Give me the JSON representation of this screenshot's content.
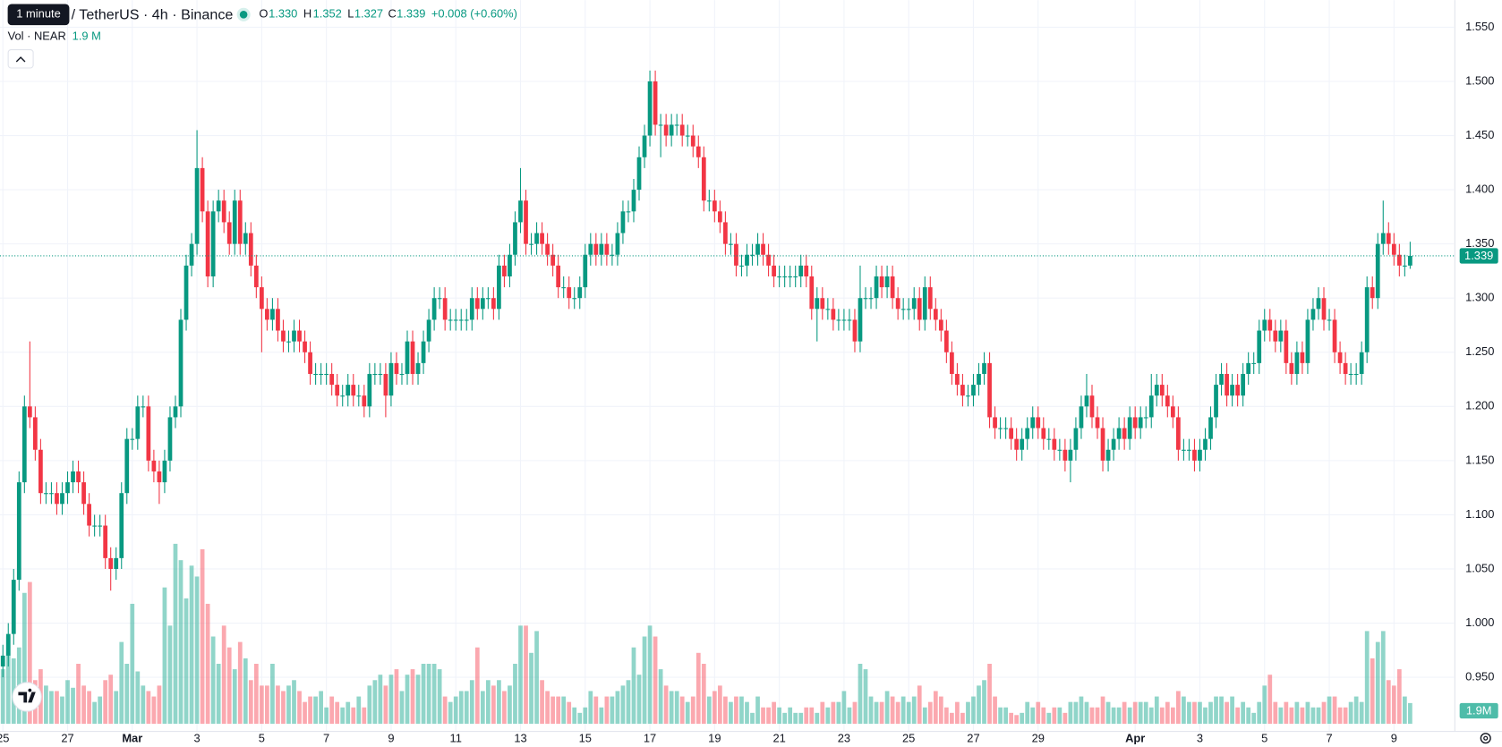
{
  "header": {
    "tooltip": "1 minute",
    "symbol": "/ TetherUS · 4h · Binance",
    "ohlc": [
      {
        "key": "O",
        "value": "1.330"
      },
      {
        "key": "H",
        "value": "1.352"
      },
      {
        "key": "L",
        "value": "1.327"
      },
      {
        "key": "C",
        "value": "1.339"
      }
    ],
    "change": "+0.008 (+0.60%)",
    "volume_title": "Vol · NEAR",
    "volume_value": "1.9 M"
  },
  "chart_data": {
    "type": "candlestick",
    "up_color": "#089981",
    "down_color": "#f23645",
    "volume_up_color": "#22ab94",
    "volume_down_color": "#f7525f",
    "ylim": [
      0.9,
      1.575
    ],
    "yticks": [
      {
        "value": 0.95,
        "label": "0.950"
      },
      {
        "value": 1.0,
        "label": "1.000"
      },
      {
        "value": 1.05,
        "label": "1.050"
      },
      {
        "value": 1.1,
        "label": "1.100"
      },
      {
        "value": 1.15,
        "label": "1.150"
      },
      {
        "value": 1.2,
        "label": "1.200"
      },
      {
        "value": 1.25,
        "label": "1.250"
      },
      {
        "value": 1.3,
        "label": "1.300"
      },
      {
        "value": 1.35,
        "label": "1.350"
      },
      {
        "value": 1.4,
        "label": "1.400"
      },
      {
        "value": 1.45,
        "label": "1.450"
      },
      {
        "value": 1.5,
        "label": "1.500"
      },
      {
        "value": 1.55,
        "label": "1.550"
      }
    ],
    "xticks": [
      {
        "value": 0,
        "label": "25"
      },
      {
        "value": 12,
        "label": "27"
      },
      {
        "value": 24,
        "label": "Mar"
      },
      {
        "value": 36,
        "label": "3"
      },
      {
        "value": 48,
        "label": "5"
      },
      {
        "value": 60,
        "label": "7"
      },
      {
        "value": 72,
        "label": "9"
      },
      {
        "value": 84,
        "label": "11"
      },
      {
        "value": 96,
        "label": "13"
      },
      {
        "value": 108,
        "label": "15"
      },
      {
        "value": 120,
        "label": "17"
      },
      {
        "value": 132,
        "label": "19"
      },
      {
        "value": 144,
        "label": "21"
      },
      {
        "value": 156,
        "label": "23"
      },
      {
        "value": 168,
        "label": "25"
      },
      {
        "value": 180,
        "label": "27"
      },
      {
        "value": 192,
        "label": "29"
      },
      {
        "value": 210,
        "label": "Apr"
      },
      {
        "value": 222,
        "label": "3"
      },
      {
        "value": 234,
        "label": "5"
      },
      {
        "value": 246,
        "label": "7"
      },
      {
        "value": 258,
        "label": "9"
      }
    ],
    "last_price": {
      "value": 1.339,
      "label": "1.339"
    },
    "volume_ylim": [
      0,
      16.5
    ],
    "volume_tag": {
      "value": 1.9,
      "label": "1.9M"
    },
    "open": [
      0.96,
      0.97,
      0.99,
      1.04,
      1.13,
      1.2,
      1.19,
      1.16,
      1.12,
      1.12,
      1.12,
      1.11,
      1.12,
      1.13,
      1.14,
      1.13,
      1.11,
      1.09,
      1.09,
      1.09,
      1.06,
      1.05,
      1.06,
      1.12,
      1.17,
      1.17,
      1.2,
      1.2,
      1.15,
      1.14,
      1.13,
      1.15,
      1.19,
      1.2,
      1.28,
      1.33,
      1.35,
      1.42,
      1.38,
      1.32,
      1.38,
      1.39,
      1.37,
      1.35,
      1.39,
      1.35,
      1.36,
      1.33,
      1.31,
      1.29,
      1.28,
      1.29,
      1.27,
      1.26,
      1.26,
      1.27,
      1.26,
      1.25,
      1.23,
      1.23,
      1.23,
      1.23,
      1.22,
      1.21,
      1.21,
      1.22,
      1.21,
      1.21,
      1.2,
      1.23,
      1.23,
      1.23,
      1.21,
      1.24,
      1.23,
      1.23,
      1.26,
      1.23,
      1.24,
      1.26,
      1.28,
      1.3,
      1.3,
      1.28,
      1.28,
      1.28,
      1.28,
      1.28,
      1.3,
      1.29,
      1.3,
      1.3,
      1.29,
      1.33,
      1.32,
      1.34,
      1.37,
      1.39,
      1.35,
      1.35,
      1.36,
      1.35,
      1.34,
      1.33,
      1.31,
      1.31,
      1.3,
      1.3,
      1.31,
      1.34,
      1.35,
      1.34,
      1.35,
      1.34,
      1.34,
      1.36,
      1.38,
      1.38,
      1.4,
      1.43,
      1.45,
      1.5,
      1.46,
      1.46,
      1.45,
      1.46,
      1.46,
      1.45,
      1.45,
      1.44,
      1.43,
      1.39,
      1.39,
      1.38,
      1.37,
      1.35,
      1.35,
      1.33,
      1.33,
      1.34,
      1.34,
      1.35,
      1.34,
      1.33,
      1.32,
      1.32,
      1.32,
      1.32,
      1.32,
      1.33,
      1.32,
      1.29,
      1.3,
      1.29,
      1.29,
      1.28,
      1.28,
      1.28,
      1.28,
      1.26,
      1.3,
      1.3,
      1.3,
      1.32,
      1.31,
      1.32,
      1.3,
      1.29,
      1.29,
      1.29,
      1.3,
      1.28,
      1.31,
      1.29,
      1.28,
      1.27,
      1.25,
      1.23,
      1.22,
      1.21,
      1.21,
      1.22,
      1.23,
      1.24,
      1.19,
      1.18,
      1.18,
      1.18,
      1.17,
      1.16,
      1.17,
      1.18,
      1.19,
      1.18,
      1.17,
      1.17,
      1.16,
      1.16,
      1.15,
      1.16,
      1.18,
      1.2,
      1.21,
      1.19,
      1.18,
      1.15,
      1.16,
      1.17,
      1.18,
      1.17,
      1.19,
      1.18,
      1.19,
      1.19,
      1.21,
      1.22,
      1.21,
      1.2,
      1.19,
      1.16,
      1.16,
      1.16,
      1.15,
      1.16,
      1.17,
      1.19,
      1.22,
      1.23,
      1.21,
      1.22,
      1.21,
      1.23,
      1.24,
      1.24,
      1.27,
      1.28,
      1.27,
      1.26,
      1.27,
      1.24,
      1.23,
      1.25,
      1.24,
      1.28,
      1.29,
      1.3,
      1.28,
      1.28,
      1.25,
      1.24,
      1.23,
      1.23,
      1.23,
      1.25,
      1.31,
      1.3,
      1.35,
      1.36,
      1.35,
      1.34,
      1.33,
      1.33
    ],
    "high": [
      0.98,
      1.0,
      1.05,
      1.14,
      1.21,
      1.26,
      1.2,
      1.17,
      1.13,
      1.13,
      1.13,
      1.13,
      1.14,
      1.15,
      1.15,
      1.14,
      1.12,
      1.1,
      1.1,
      1.1,
      1.07,
      1.07,
      1.13,
      1.18,
      1.18,
      1.21,
      1.21,
      1.21,
      1.16,
      1.15,
      1.16,
      1.2,
      1.21,
      1.29,
      1.34,
      1.36,
      1.455,
      1.43,
      1.39,
      1.39,
      1.4,
      1.4,
      1.38,
      1.4,
      1.4,
      1.37,
      1.37,
      1.34,
      1.32,
      1.3,
      1.3,
      1.3,
      1.28,
      1.27,
      1.28,
      1.28,
      1.27,
      1.26,
      1.24,
      1.24,
      1.24,
      1.24,
      1.23,
      1.22,
      1.23,
      1.23,
      1.22,
      1.22,
      1.24,
      1.24,
      1.24,
      1.24,
      1.25,
      1.25,
      1.24,
      1.27,
      1.27,
      1.25,
      1.27,
      1.29,
      1.31,
      1.31,
      1.31,
      1.29,
      1.29,
      1.29,
      1.29,
      1.31,
      1.31,
      1.31,
      1.31,
      1.31,
      1.34,
      1.34,
      1.35,
      1.38,
      1.42,
      1.4,
      1.36,
      1.37,
      1.37,
      1.36,
      1.35,
      1.34,
      1.32,
      1.32,
      1.31,
      1.32,
      1.35,
      1.36,
      1.36,
      1.36,
      1.36,
      1.35,
      1.37,
      1.39,
      1.39,
      1.41,
      1.44,
      1.46,
      1.51,
      1.51,
      1.47,
      1.47,
      1.47,
      1.47,
      1.47,
      1.46,
      1.46,
      1.45,
      1.44,
      1.4,
      1.4,
      1.39,
      1.38,
      1.36,
      1.36,
      1.34,
      1.35,
      1.35,
      1.36,
      1.36,
      1.35,
      1.34,
      1.33,
      1.33,
      1.33,
      1.33,
      1.34,
      1.34,
      1.33,
      1.31,
      1.31,
      1.3,
      1.3,
      1.29,
      1.29,
      1.29,
      1.29,
      1.33,
      1.31,
      1.31,
      1.33,
      1.33,
      1.33,
      1.33,
      1.31,
      1.3,
      1.3,
      1.31,
      1.31,
      1.32,
      1.32,
      1.3,
      1.29,
      1.28,
      1.26,
      1.24,
      1.23,
      1.22,
      1.23,
      1.24,
      1.25,
      1.25,
      1.2,
      1.19,
      1.19,
      1.19,
      1.18,
      1.18,
      1.19,
      1.2,
      1.2,
      1.19,
      1.18,
      1.18,
      1.17,
      1.17,
      1.17,
      1.19,
      1.21,
      1.23,
      1.22,
      1.2,
      1.19,
      1.17,
      1.18,
      1.19,
      1.19,
      1.2,
      1.2,
      1.2,
      1.2,
      1.23,
      1.23,
      1.23,
      1.22,
      1.21,
      1.2,
      1.17,
      1.17,
      1.17,
      1.17,
      1.18,
      1.2,
      1.23,
      1.24,
      1.24,
      1.23,
      1.23,
      1.24,
      1.25,
      1.25,
      1.28,
      1.29,
      1.29,
      1.28,
      1.28,
      1.28,
      1.25,
      1.26,
      1.26,
      1.29,
      1.3,
      1.31,
      1.31,
      1.29,
      1.29,
      1.26,
      1.25,
      1.24,
      1.24,
      1.26,
      1.32,
      1.32,
      1.36,
      1.39,
      1.37,
      1.36,
      1.35,
      1.34,
      1.352
    ],
    "low": [
      0.95,
      0.96,
      0.98,
      1.03,
      1.12,
      1.18,
      1.15,
      1.11,
      1.11,
      1.11,
      1.1,
      1.1,
      1.11,
      1.12,
      1.12,
      1.1,
      1.08,
      1.08,
      1.08,
      1.05,
      1.03,
      1.04,
      1.05,
      1.11,
      1.16,
      1.16,
      1.19,
      1.14,
      1.13,
      1.11,
      1.12,
      1.14,
      1.18,
      1.19,
      1.27,
      1.32,
      1.34,
      1.37,
      1.31,
      1.31,
      1.37,
      1.36,
      1.34,
      1.34,
      1.34,
      1.34,
      1.32,
      1.3,
      1.25,
      1.27,
      1.27,
      1.26,
      1.25,
      1.25,
      1.25,
      1.25,
      1.24,
      1.22,
      1.22,
      1.22,
      1.22,
      1.21,
      1.2,
      1.2,
      1.2,
      1.2,
      1.2,
      1.19,
      1.19,
      1.22,
      1.22,
      1.19,
      1.2,
      1.22,
      1.22,
      1.22,
      1.22,
      1.22,
      1.23,
      1.25,
      1.27,
      1.29,
      1.27,
      1.27,
      1.27,
      1.27,
      1.27,
      1.27,
      1.28,
      1.28,
      1.29,
      1.28,
      1.28,
      1.31,
      1.31,
      1.33,
      1.36,
      1.34,
      1.34,
      1.34,
      1.34,
      1.33,
      1.32,
      1.3,
      1.3,
      1.29,
      1.29,
      1.29,
      1.3,
      1.33,
      1.33,
      1.33,
      1.33,
      1.33,
      1.33,
      1.35,
      1.37,
      1.37,
      1.39,
      1.42,
      1.44,
      1.45,
      1.43,
      1.44,
      1.44,
      1.45,
      1.44,
      1.44,
      1.43,
      1.42,
      1.38,
      1.38,
      1.37,
      1.36,
      1.34,
      1.34,
      1.32,
      1.32,
      1.32,
      1.33,
      1.33,
      1.33,
      1.32,
      1.31,
      1.31,
      1.31,
      1.31,
      1.31,
      1.31,
      1.31,
      1.28,
      1.26,
      1.28,
      1.28,
      1.27,
      1.27,
      1.27,
      1.27,
      1.25,
      1.25,
      1.29,
      1.29,
      1.29,
      1.3,
      1.3,
      1.29,
      1.28,
      1.28,
      1.28,
      1.28,
      1.27,
      1.27,
      1.28,
      1.27,
      1.26,
      1.24,
      1.22,
      1.21,
      1.2,
      1.2,
      1.2,
      1.21,
      1.22,
      1.18,
      1.17,
      1.17,
      1.17,
      1.16,
      1.15,
      1.15,
      1.16,
      1.17,
      1.17,
      1.16,
      1.16,
      1.15,
      1.15,
      1.14,
      1.13,
      1.15,
      1.17,
      1.19,
      1.18,
      1.17,
      1.14,
      1.14,
      1.15,
      1.16,
      1.16,
      1.16,
      1.17,
      1.17,
      1.18,
      1.18,
      1.2,
      1.2,
      1.19,
      1.18,
      1.15,
      1.15,
      1.15,
      1.14,
      1.14,
      1.15,
      1.16,
      1.18,
      1.21,
      1.2,
      1.2,
      1.2,
      1.2,
      1.22,
      1.23,
      1.23,
      1.26,
      1.26,
      1.25,
      1.25,
      1.23,
      1.22,
      1.22,
      1.23,
      1.23,
      1.27,
      1.28,
      1.27,
      1.27,
      1.24,
      1.23,
      1.22,
      1.22,
      1.22,
      1.22,
      1.24,
      1.29,
      1.29,
      1.34,
      1.34,
      1.33,
      1.32,
      1.32,
      1.327
    ],
    "close": [
      0.97,
      0.99,
      1.04,
      1.13,
      1.2,
      1.19,
      1.16,
      1.12,
      1.12,
      1.12,
      1.11,
      1.12,
      1.13,
      1.14,
      1.13,
      1.11,
      1.09,
      1.09,
      1.09,
      1.06,
      1.05,
      1.06,
      1.12,
      1.17,
      1.17,
      1.2,
      1.2,
      1.15,
      1.14,
      1.13,
      1.15,
      1.19,
      1.2,
      1.28,
      1.33,
      1.35,
      1.42,
      1.38,
      1.32,
      1.38,
      1.39,
      1.37,
      1.35,
      1.39,
      1.35,
      1.36,
      1.33,
      1.31,
      1.29,
      1.28,
      1.29,
      1.27,
      1.26,
      1.26,
      1.27,
      1.26,
      1.25,
      1.23,
      1.23,
      1.23,
      1.23,
      1.22,
      1.21,
      1.21,
      1.22,
      1.21,
      1.21,
      1.2,
      1.23,
      1.23,
      1.23,
      1.21,
      1.24,
      1.23,
      1.23,
      1.26,
      1.23,
      1.24,
      1.26,
      1.28,
      1.3,
      1.3,
      1.28,
      1.28,
      1.28,
      1.28,
      1.28,
      1.3,
      1.29,
      1.3,
      1.3,
      1.29,
      1.33,
      1.32,
      1.34,
      1.37,
      1.39,
      1.35,
      1.35,
      1.36,
      1.35,
      1.34,
      1.33,
      1.31,
      1.31,
      1.3,
      1.3,
      1.31,
      1.34,
      1.35,
      1.34,
      1.35,
      1.34,
      1.34,
      1.36,
      1.38,
      1.38,
      1.4,
      1.43,
      1.45,
      1.5,
      1.46,
      1.46,
      1.45,
      1.46,
      1.46,
      1.45,
      1.45,
      1.44,
      1.43,
      1.39,
      1.39,
      1.38,
      1.37,
      1.35,
      1.35,
      1.33,
      1.33,
      1.34,
      1.34,
      1.35,
      1.34,
      1.33,
      1.32,
      1.32,
      1.32,
      1.32,
      1.32,
      1.33,
      1.32,
      1.29,
      1.3,
      1.29,
      1.29,
      1.28,
      1.28,
      1.28,
      1.28,
      1.26,
      1.3,
      1.3,
      1.3,
      1.32,
      1.31,
      1.32,
      1.3,
      1.29,
      1.29,
      1.29,
      1.3,
      1.28,
      1.31,
      1.29,
      1.28,
      1.27,
      1.25,
      1.23,
      1.22,
      1.21,
      1.21,
      1.22,
      1.23,
      1.24,
      1.19,
      1.18,
      1.18,
      1.18,
      1.17,
      1.16,
      1.17,
      1.18,
      1.19,
      1.18,
      1.17,
      1.17,
      1.16,
      1.16,
      1.15,
      1.16,
      1.18,
      1.2,
      1.21,
      1.19,
      1.18,
      1.15,
      1.16,
      1.17,
      1.18,
      1.17,
      1.19,
      1.18,
      1.19,
      1.19,
      1.21,
      1.22,
      1.21,
      1.2,
      1.19,
      1.16,
      1.16,
      1.16,
      1.15,
      1.16,
      1.17,
      1.19,
      1.22,
      1.23,
      1.21,
      1.22,
      1.21,
      1.23,
      1.24,
      1.24,
      1.27,
      1.28,
      1.27,
      1.26,
      1.27,
      1.24,
      1.23,
      1.25,
      1.24,
      1.28,
      1.29,
      1.3,
      1.28,
      1.28,
      1.25,
      1.24,
      1.23,
      1.23,
      1.23,
      1.25,
      1.31,
      1.3,
      1.35,
      1.36,
      1.35,
      1.34,
      1.33,
      1.33,
      1.339
    ],
    "volume": [
      5,
      8,
      6,
      7,
      12,
      13,
      4,
      5,
      3.5,
      3,
      3,
      2.5,
      4,
      3.3,
      5.5,
      3.5,
      3,
      2,
      2.5,
      4,
      4.5,
      3,
      7.5,
      5.5,
      11,
      4.8,
      3.5,
      3,
      2.5,
      3.5,
      12.5,
      9,
      16.5,
      15,
      11.5,
      14.5,
      13.5,
      16,
      11,
      8,
      5.5,
      9,
      7,
      5,
      7.5,
      6,
      4,
      5.5,
      3.5,
      3.5,
      5.5,
      3.5,
      3,
      3.5,
      4,
      3,
      2,
      2.5,
      2.5,
      3,
      1.5,
      2.5,
      2,
      1.5,
      2,
      1.5,
      2.5,
      1.5,
      3.5,
      4,
      4.5,
      3.5,
      4.5,
      5,
      3,
      4.5,
      5,
      4.5,
      5.5,
      5.5,
      5.5,
      5,
      2.5,
      2,
      2.5,
      3,
      3,
      4,
      7,
      3,
      4,
      3.5,
      4,
      3,
      3.5,
      5.5,
      9,
      9,
      6.5,
      8.5,
      4,
      3,
      2.5,
      2.5,
      2.5,
      2,
      1.5,
      1,
      1.5,
      3,
      2.5,
      1.5,
      2.5,
      2.5,
      3,
      3.5,
      4,
      7,
      4.5,
      8,
      9,
      8,
      5,
      3.5,
      3,
      3,
      2.5,
      2,
      2.5,
      6.5,
      5.5,
      2.5,
      3,
      3.5,
      2.5,
      2,
      2.5,
      2.5,
      2,
      1,
      2.5,
      1.5,
      1.5,
      2,
      1.5,
      1,
      1.5,
      1,
      1,
      1.5,
      1.5,
      1,
      2,
      1.5,
      2,
      2,
      3,
      1.5,
      2,
      5.5,
      5,
      2.5,
      2,
      2,
      3,
      2.5,
      2,
      2.5,
      2,
      2.5,
      3.5,
      1.5,
      2,
      3,
      2.5,
      1.5,
      1,
      2,
      1,
      2,
      2.5,
      3.5,
      4,
      5.5,
      2.5,
      1.5,
      1.5,
      1,
      0.8,
      1,
      2,
      1.5,
      2,
      1.5,
      1,
      1.5,
      1.5,
      1,
      2,
      2,
      2.5,
      2,
      1.5,
      1.5,
      2.5,
      2,
      1.5,
      1.5,
      2,
      1.5,
      2,
      2,
      2,
      1.5,
      2.5,
      1.5,
      2,
      1.5,
      3,
      2.5,
      2,
      2,
      2,
      1.5,
      2,
      2.5,
      2.5,
      2,
      2.5,
      1.5,
      2,
      1.5,
      1,
      2,
      3.5,
      4.5,
      2,
      1.5,
      2,
      1.5,
      2,
      1.5,
      2,
      1.5,
      1.5,
      2,
      2.5,
      2.5,
      1.5,
      1.5,
      2,
      2.5,
      2,
      8.5,
      6,
      7.5,
      8.5,
      4,
      3.5,
      5,
      2.5,
      1.9
    ]
  }
}
